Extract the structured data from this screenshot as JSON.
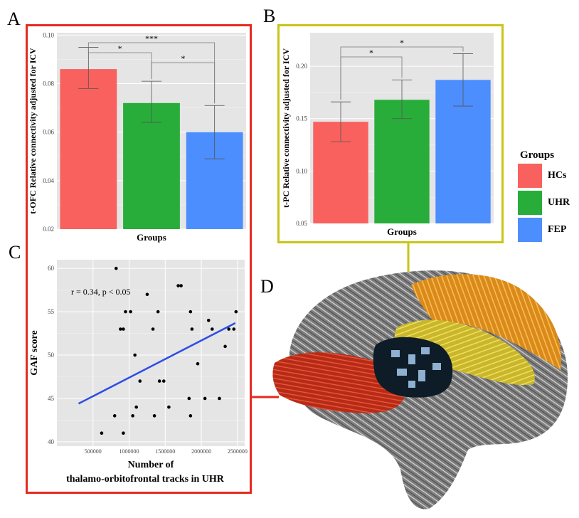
{
  "panels": {
    "a": "A",
    "b": "B",
    "c": "C",
    "d": "D"
  },
  "colors": {
    "hcs": "#F8615E",
    "uhr": "#28AD3A",
    "fep": "#4D8EFF",
    "panel_a_frame": "#E52A1E",
    "panel_b_frame": "#C9C516",
    "fit_line": "#2E4CE6"
  },
  "legend": {
    "title": "Groups",
    "items": [
      {
        "label": "HCs",
        "color": "#F8615E"
      },
      {
        "label": "UHR",
        "color": "#28AD3A"
      },
      {
        "label": "FEP",
        "color": "#4D8EFF"
      }
    ]
  },
  "chart_data": [
    {
      "id": "A",
      "type": "bar",
      "categories": [
        "HCs",
        "UHR",
        "FEP"
      ],
      "values": [
        0.086,
        0.072,
        0.06
      ],
      "error_low": [
        0.078,
        0.064,
        0.049
      ],
      "error_high": [
        0.095,
        0.081,
        0.071
      ],
      "colors": [
        "#F8615E",
        "#28AD3A",
        "#4D8EFF"
      ],
      "xlabel": "Groups",
      "ylabel": "t-OFC Relative connectivity adjusted for ICV",
      "ylim": [
        0.02,
        0.101
      ],
      "yticks": [
        0.02,
        0.04,
        0.06,
        0.08,
        0.1
      ],
      "ytick_labels": [
        "0.02",
        "0.04",
        "0.06",
        "0.08",
        "0.10"
      ],
      "significance": [
        {
          "from": 0,
          "to": 1,
          "label": "*",
          "level": 1
        },
        {
          "from": 1,
          "to": 2,
          "label": "*",
          "level": 0
        },
        {
          "from": 0,
          "to": 2,
          "label": "***",
          "level": 2
        }
      ],
      "grid": true
    },
    {
      "id": "B",
      "type": "bar",
      "categories": [
        "HCs",
        "UHR",
        "FEP"
      ],
      "values": [
        0.147,
        0.168,
        0.187
      ],
      "error_low": [
        0.128,
        0.15,
        0.162
      ],
      "error_high": [
        0.166,
        0.187,
        0.212
      ],
      "colors": [
        "#F8615E",
        "#28AD3A",
        "#4D8EFF"
      ],
      "xlabel": "Groups",
      "ylabel": "t-PC Relative connectivity adjusted for ICV",
      "ylim": [
        0.05,
        0.232
      ],
      "yticks": [
        0.05,
        0.1,
        0.15,
        0.2
      ],
      "ytick_labels": [
        "0.05",
        "0.10",
        "0.15",
        "0.20"
      ],
      "significance": [
        {
          "from": 0,
          "to": 1,
          "label": "*",
          "level": 0
        },
        {
          "from": 0,
          "to": 2,
          "label": "*",
          "level": 1
        }
      ],
      "grid": true
    },
    {
      "id": "C",
      "type": "scatter",
      "xlabel_line1": "Number of",
      "xlabel_line2": "thalamo-orbitofrontal tracks in UHR",
      "ylabel": "GAF score",
      "annotation": "r = 0.34, p < 0.05",
      "xlim": [
        0,
        2600000
      ],
      "ylim": [
        39.5,
        61
      ],
      "xticks": [
        500000,
        1000000,
        1500000,
        2000000,
        2500000
      ],
      "xtick_labels": [
        "500000",
        "1000000",
        "1500000",
        "2000000",
        "2500000"
      ],
      "yticks": [
        40,
        45,
        50,
        55,
        60
      ],
      "ytick_labels": [
        "40",
        "45",
        "50",
        "55",
        "60"
      ],
      "points": [
        [
          620000,
          41
        ],
        [
          800000,
          43
        ],
        [
          820000,
          60
        ],
        [
          880000,
          53
        ],
        [
          920000,
          53
        ],
        [
          920000,
          41
        ],
        [
          950000,
          55
        ],
        [
          1020000,
          55
        ],
        [
          1050000,
          43
        ],
        [
          1080000,
          50
        ],
        [
          1100000,
          44
        ],
        [
          1150000,
          47
        ],
        [
          1250000,
          57
        ],
        [
          1330000,
          53
        ],
        [
          1350000,
          43
        ],
        [
          1400000,
          55
        ],
        [
          1420000,
          47
        ],
        [
          1480000,
          47
        ],
        [
          1550000,
          44
        ],
        [
          1680000,
          58
        ],
        [
          1720000,
          58
        ],
        [
          1830000,
          45
        ],
        [
          1850000,
          43
        ],
        [
          1850000,
          55
        ],
        [
          1870000,
          53
        ],
        [
          1950000,
          49
        ],
        [
          2050000,
          45
        ],
        [
          2100000,
          54
        ],
        [
          2150000,
          53
        ],
        [
          2250000,
          45
        ],
        [
          2330000,
          51
        ],
        [
          2380000,
          53
        ],
        [
          2450000,
          53
        ],
        [
          2480000,
          55
        ]
      ],
      "fit_line": [
        [
          300000,
          44.4
        ],
        [
          2470000,
          53.7
        ]
      ],
      "grid": true
    }
  ]
}
